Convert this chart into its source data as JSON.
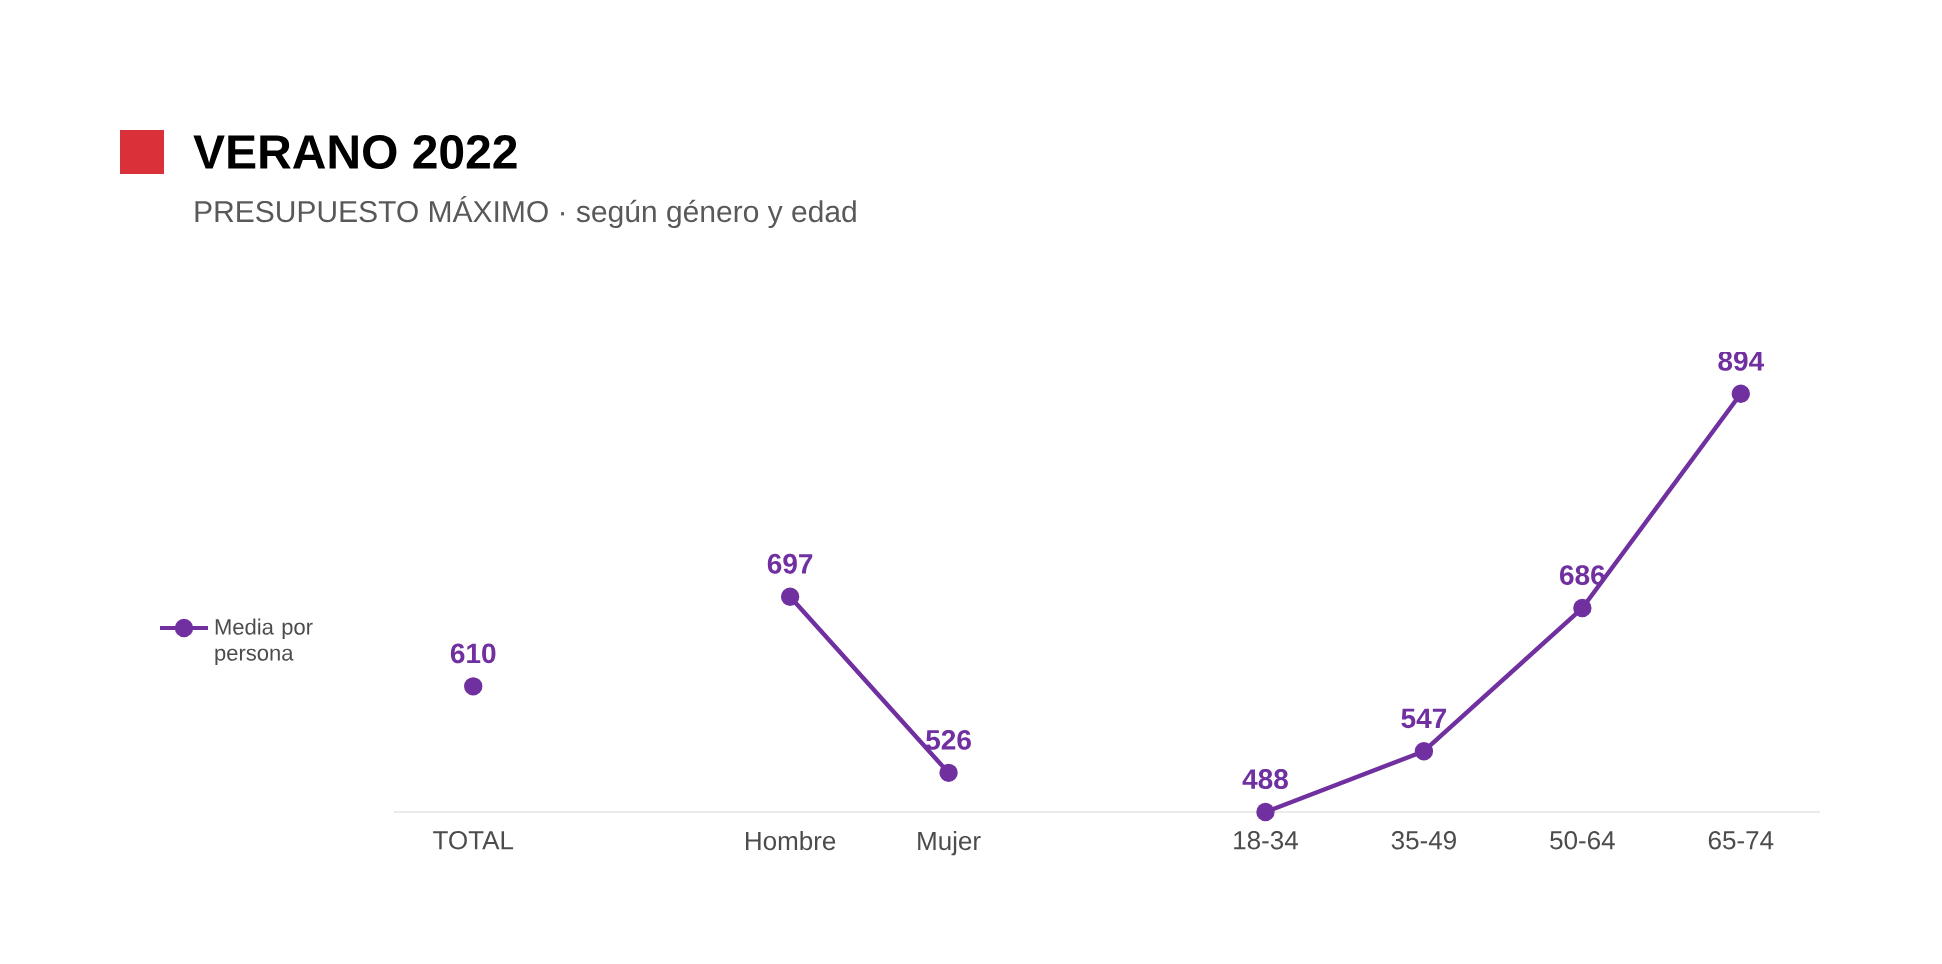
{
  "chart_data": {
    "type": "line",
    "title": "VERANO 2022",
    "subtitle": "PRESUPUESTO MÁXIMO  · según género y edad",
    "categories": [
      "TOTAL",
      null,
      "Hombre",
      "Mujer",
      null,
      "18-34",
      "35-49",
      "50-64",
      "65-74"
    ],
    "series": [
      {
        "name": "Media por persona",
        "color": "#7030a0",
        "values": [
          610,
          null,
          697,
          526,
          null,
          488,
          547,
          686,
          894
        ]
      }
    ],
    "data_labels": true,
    "legend": "left",
    "marker": "circle",
    "line_style": "solid"
  }
}
